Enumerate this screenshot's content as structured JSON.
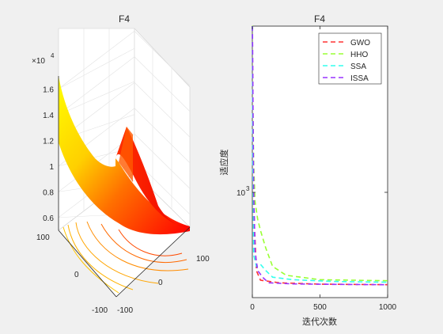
{
  "chart_data": [
    {
      "type": "surface",
      "title": "F4",
      "exponent_label": "×10",
      "exponent_power": "4",
      "z_ticks": [
        "0.6",
        "0.8",
        "1",
        "1.2",
        "1.4",
        "1.6"
      ],
      "x_ticks": [
        "-100",
        "0",
        "100"
      ],
      "y_ticks": [
        "-100",
        "0",
        "100"
      ],
      "xlim": [
        -100,
        100
      ],
      "ylim": [
        -100,
        100
      ],
      "zlim": [
        0.5,
        1.7
      ],
      "colormap": [
        "#ff0000",
        "#ff5000",
        "#ff9000",
        "#ffcc00",
        "#ffff00"
      ],
      "grid": true
    },
    {
      "type": "line",
      "title": "F4",
      "xlabel": "迭代次数",
      "ylabel": "适应度",
      "x_ticks": [
        "0",
        "500",
        "1000"
      ],
      "y_tick_base": "10",
      "y_tick_power": "3",
      "xlim": [
        0,
        1000
      ],
      "ylim": [
        200,
        12000
      ],
      "y_scale": "log",
      "legend_position": "top-right",
      "series": [
        {
          "name": "GWO",
          "color": "#ff3333",
          "x": [
            0,
            3,
            8,
            15,
            30,
            60,
            200,
            500,
            1000
          ],
          "y": [
            12000,
            4000,
            1200,
            600,
            300,
            260,
            250,
            245,
            243
          ]
        },
        {
          "name": "HHO",
          "color": "#99ff33",
          "x": [
            0,
            1,
            2,
            5,
            10,
            20,
            40,
            60,
            100,
            150,
            250,
            500,
            1000
          ],
          "y": [
            12000,
            12000,
            5000,
            3000,
            1500,
            850,
            650,
            550,
            420,
            320,
            280,
            262,
            258
          ]
        },
        {
          "name": "SSA",
          "color": "#33ffee",
          "x": [
            0,
            1,
            3,
            6,
            10,
            30,
            60,
            100,
            150,
            300,
            600,
            1000
          ],
          "y": [
            12000,
            5000,
            1400,
            1100,
            380,
            320,
            330,
            300,
            272,
            262,
            255,
            252
          ]
        },
        {
          "name": "ISSA",
          "color": "#9933ff",
          "x": [
            0,
            2,
            5,
            10,
            20,
            40,
            80,
            120,
            300,
            600,
            1000
          ],
          "y": [
            12000,
            9000,
            3000,
            1000,
            400,
            300,
            270,
            250,
            246,
            244,
            243
          ]
        }
      ]
    }
  ]
}
